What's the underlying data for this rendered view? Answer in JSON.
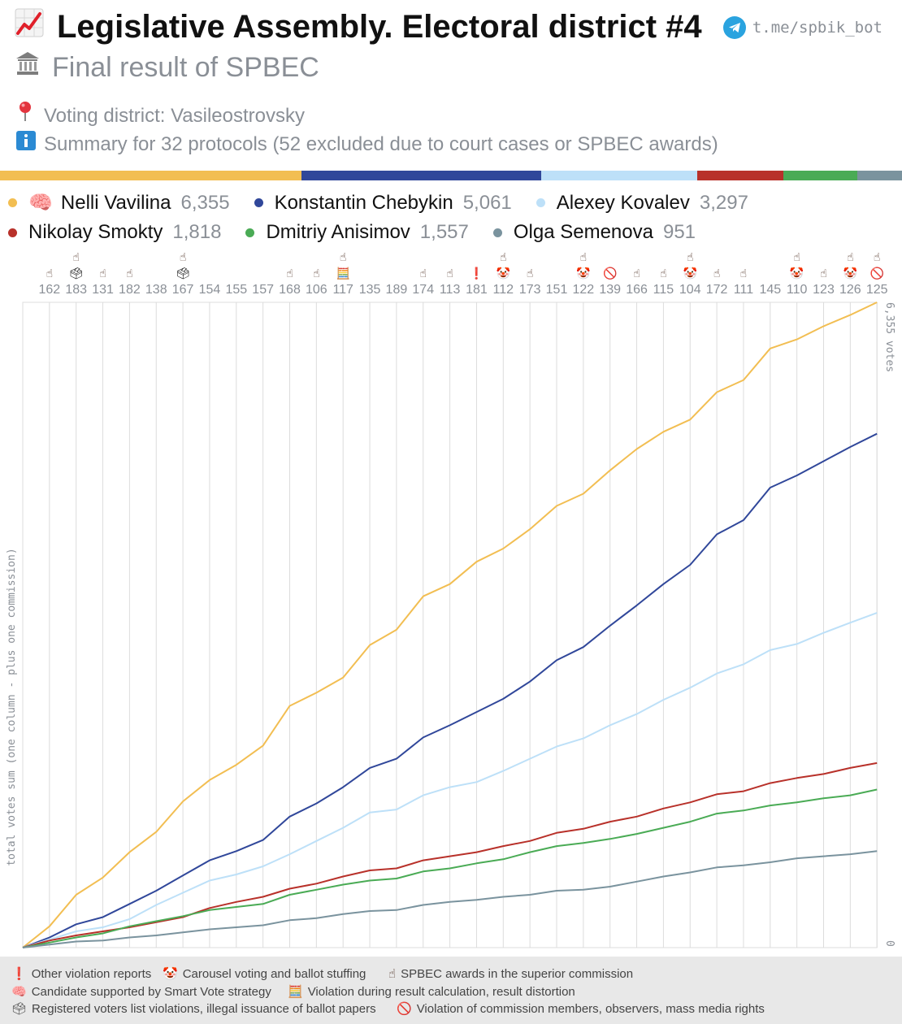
{
  "header": {
    "title": "Legislative Assembly. Electoral district #4",
    "subtitle": "Final result of SPBEC",
    "district": "Voting district: Vasileostrovsky",
    "summary": "Summary for 32 protocols (52 excluded due to court cases or SPBEC awards)",
    "bot_link": "t.me/spbik_bot",
    "title_icon": "chart-increasing-icon",
    "subtitle_icon": "classical-building-icon",
    "district_icon": "round-pushpin-icon",
    "summary_icon": "information-icon"
  },
  "legend": {
    "candidates": [
      {
        "name": "Nelli Vavilina",
        "votes": "6,355",
        "color": "#f2be52",
        "badge": "🧠"
      },
      {
        "name": "Konstantin Chebykin",
        "votes": "5,061",
        "color": "#30479a",
        "badge": ""
      },
      {
        "name": "Alexey Kovalev",
        "votes": "3,297",
        "color": "#bde0f8",
        "badge": ""
      },
      {
        "name": "Nikolay Smokty",
        "votes": "1,818",
        "color": "#b8312a",
        "badge": ""
      },
      {
        "name": "Dmitriy Anisimov",
        "votes": "1,557",
        "color": "#4aab55",
        "badge": ""
      },
      {
        "name": "Olga Semenova",
        "votes": "951",
        "color": "#7a939e",
        "badge": ""
      }
    ]
  },
  "chart_data": {
    "type": "line",
    "title": "",
    "ylabel": "total votes sum (one column - plus one commission)",
    "ylim": [
      0,
      6355
    ],
    "y_tick_labels": [
      "6,355 votes",
      "0"
    ],
    "grid": true,
    "x": [
      "",
      "162",
      "183",
      "131",
      "182",
      "138",
      "167",
      "154",
      "155",
      "157",
      "168",
      "106",
      "117",
      "135",
      "189",
      "174",
      "113",
      "181",
      "112",
      "173",
      "151",
      "122",
      "139",
      "166",
      "115",
      "104",
      "172",
      "111",
      "145",
      "110",
      "123",
      "126",
      "125"
    ],
    "markers": [
      [
        "award"
      ],
      [
        "award",
        "registered-voters"
      ],
      [
        "award"
      ],
      [
        "award"
      ],
      [],
      [
        "award",
        "registered-voters"
      ],
      [],
      [],
      [],
      [
        "award"
      ],
      [
        "award"
      ],
      [
        "award",
        "result-distortion"
      ],
      [],
      [],
      [
        "award"
      ],
      [
        "award"
      ],
      [
        "other-violation"
      ],
      [
        "award",
        "carousel"
      ],
      [
        "award"
      ],
      [],
      [
        "award",
        "carousel"
      ],
      [
        "rights-violation"
      ],
      [
        "award"
      ],
      [
        "award"
      ],
      [
        "award",
        "carousel"
      ],
      [
        "award"
      ],
      [
        "award"
      ],
      [],
      [
        "award",
        "carousel"
      ],
      [
        "award"
      ],
      [
        "award",
        "carousel"
      ],
      [
        "award",
        "rights-violation"
      ]
    ],
    "series": [
      {
        "name": "Nelli Vavilina",
        "color": "#f2be52",
        "values": [
          0,
          210,
          520,
          690,
          940,
          1140,
          1440,
          1650,
          1800,
          1990,
          2380,
          2510,
          2660,
          2980,
          3130,
          3460,
          3580,
          3800,
          3930,
          4120,
          4350,
          4470,
          4700,
          4910,
          5080,
          5200,
          5470,
          5590,
          5900,
          5990,
          6120,
          6230,
          6355
        ]
      },
      {
        "name": "Konstantin Chebykin",
        "color": "#30479a",
        "values": [
          0,
          100,
          230,
          300,
          430,
          560,
          710,
          860,
          950,
          1060,
          1290,
          1420,
          1580,
          1770,
          1860,
          2070,
          2190,
          2320,
          2450,
          2620,
          2830,
          2960,
          3170,
          3370,
          3580,
          3770,
          4070,
          4210,
          4530,
          4650,
          4790,
          4930,
          5061
        ]
      },
      {
        "name": "Alexey Kovalev",
        "color": "#bde0f8",
        "values": [
          0,
          80,
          160,
          200,
          280,
          420,
          540,
          660,
          720,
          800,
          920,
          1050,
          1180,
          1330,
          1360,
          1500,
          1580,
          1630,
          1740,
          1860,
          1980,
          2060,
          2190,
          2300,
          2440,
          2560,
          2700,
          2790,
          2930,
          2990,
          3100,
          3200,
          3297
        ]
      },
      {
        "name": "Nikolay Smokty",
        "color": "#b8312a",
        "values": [
          0,
          70,
          120,
          160,
          200,
          250,
          300,
          390,
          450,
          500,
          580,
          630,
          700,
          760,
          780,
          860,
          900,
          940,
          1000,
          1050,
          1130,
          1170,
          1240,
          1290,
          1370,
          1430,
          1510,
          1540,
          1620,
          1670,
          1710,
          1770,
          1818
        ]
      },
      {
        "name": "Dmitriy Anisimov",
        "color": "#4aab55",
        "values": [
          0,
          50,
          100,
          140,
          210,
          260,
          310,
          370,
          400,
          430,
          520,
          570,
          620,
          660,
          680,
          750,
          780,
          830,
          870,
          940,
          1000,
          1030,
          1070,
          1120,
          1180,
          1240,
          1320,
          1350,
          1400,
          1430,
          1470,
          1500,
          1557
        ]
      },
      {
        "name": "Olga Semenova",
        "color": "#7a939e",
        "values": [
          0,
          30,
          60,
          70,
          100,
          120,
          150,
          180,
          200,
          220,
          270,
          290,
          330,
          360,
          370,
          420,
          450,
          470,
          500,
          520,
          560,
          570,
          600,
          650,
          700,
          740,
          790,
          810,
          840,
          880,
          900,
          920,
          951
        ]
      }
    ]
  },
  "footer": {
    "notes": [
      {
        "icon": "exclamation-icon",
        "glyph": "❗",
        "text": "Other violation reports"
      },
      {
        "icon": "clown-face-icon",
        "glyph": "🤡",
        "text": "Carousel voting and ballot stuffing"
      },
      {
        "icon": "pointing-hand-icon",
        "glyph": "☝",
        "text": "SPBEC awards in the superior commission"
      },
      {
        "icon": "brain-icon",
        "glyph": "🧠",
        "text": "Candidate supported by Smart Vote strategy"
      },
      {
        "icon": "abacus-icon",
        "glyph": "🧮",
        "text": "Violation during result calculation, result distortion"
      },
      {
        "icon": "ballot-box-icon",
        "glyph": "🗳",
        "text": "Registered voters list violations, illegal issuance of ballot papers"
      },
      {
        "icon": "prohibited-icon",
        "glyph": "🚫",
        "text": "Violation of commission members, observers, mass media rights"
      }
    ]
  }
}
